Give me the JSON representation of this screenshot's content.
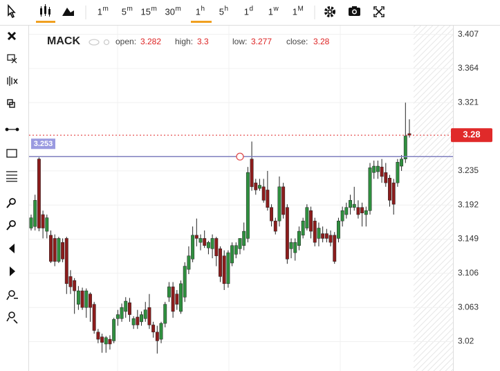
{
  "toolbar": {
    "intervals": [
      {
        "value": "1",
        "unit": "m"
      },
      {
        "value": "5",
        "unit": "m"
      },
      {
        "value": "15",
        "unit": "m"
      },
      {
        "value": "30",
        "unit": "m"
      },
      {
        "value": "1",
        "unit": "h",
        "active": true
      },
      {
        "value": "5",
        "unit": "h"
      },
      {
        "value": "1",
        "unit": "d"
      },
      {
        "value": "1",
        "unit": "w"
      },
      {
        "value": "1",
        "unit": "M"
      }
    ]
  },
  "legend": {
    "symbol": "MACK",
    "open_label": "open:",
    "high_label": "high:",
    "low_label": "low:",
    "close_label": "close:"
  },
  "chart_data": {
    "type": "candlestick",
    "up_color": "#2f8f3f",
    "down_color": "#8c1c1c",
    "open": [
      3.163,
      3.165,
      3.25,
      3.18,
      3.159,
      3.154,
      3.15,
      3.121,
      3.145,
      3.15,
      3.102,
      3.097,
      3.067,
      3.084,
      3.063,
      3.08,
      3.067,
      3.032,
      3.026,
      3.017,
      3.023,
      3.021,
      3.049,
      3.049,
      3.058,
      3.069,
      3.041,
      3.051,
      3.045,
      3.049,
      3.063,
      3.041,
      3.032,
      3.023,
      3.043,
      3.076,
      3.089,
      3.08,
      3.058,
      3.076,
      3.111,
      3.124,
      3.154,
      3.145,
      3.15,
      3.138,
      3.137,
      3.15,
      3.137,
      3.128,
      3.093,
      3.119,
      3.13,
      3.137,
      3.141,
      3.15,
      3.25,
      3.22,
      3.213,
      3.215,
      3.211,
      3.189,
      3.172,
      3.172,
      3.215,
      3.189,
      3.137,
      3.132,
      3.141,
      3.154,
      3.163,
      3.185,
      3.172,
      3.15,
      3.156,
      3.156,
      3.154,
      3.154,
      3.15,
      3.172,
      3.18,
      3.189,
      3.189,
      3.189,
      3.189,
      3.18,
      3.185,
      3.233,
      3.234,
      3.24,
      3.233,
      3.226,
      3.22,
      3.22,
      3.241,
      3.25,
      3.282
    ],
    "high": [
      3.18,
      3.205,
      3.252,
      3.185,
      3.18,
      3.16,
      3.155,
      3.152,
      3.15,
      3.152,
      3.11,
      3.1,
      3.09,
      3.088,
      3.087,
      3.082,
      3.07,
      3.036,
      3.03,
      3.027,
      3.028,
      3.05,
      3.06,
      3.068,
      3.076,
      3.075,
      3.052,
      3.06,
      3.058,
      3.07,
      3.08,
      3.045,
      3.04,
      3.045,
      3.07,
      3.095,
      3.095,
      3.085,
      3.097,
      3.12,
      3.14,
      3.165,
      3.175,
      3.155,
      3.16,
      3.147,
      3.155,
      3.152,
      3.14,
      3.135,
      3.135,
      3.145,
      3.145,
      3.15,
      3.17,
      3.24,
      3.272,
      3.225,
      3.225,
      3.225,
      3.235,
      3.193,
      3.176,
      3.228,
      3.22,
      3.193,
      3.15,
      3.15,
      3.165,
      3.176,
      3.193,
      3.19,
      3.176,
      3.17,
      3.165,
      3.162,
      3.16,
      3.158,
      3.176,
      3.19,
      3.195,
      3.205,
      3.215,
      3.198,
      3.195,
      3.19,
      3.245,
      3.248,
      3.248,
      3.25,
      3.245,
      3.23,
      3.225,
      3.25,
      3.255,
      3.321,
      3.3
    ],
    "low": [
      3.16,
      3.16,
      3.159,
      3.15,
      3.15,
      3.119,
      3.115,
      3.119,
      3.12,
      3.08,
      3.08,
      3.055,
      3.06,
      3.06,
      3.05,
      3.045,
      3.03,
      3.018,
      3.006,
      3.006,
      3.01,
      3.018,
      3.04,
      3.045,
      3.05,
      3.045,
      3.036,
      3.036,
      3.04,
      3.045,
      3.036,
      3.025,
      3.005,
      3.018,
      3.038,
      3.07,
      3.05,
      3.06,
      3.055,
      3.07,
      3.105,
      3.12,
      3.14,
      3.135,
      3.138,
      3.13,
      3.125,
      3.115,
      3.095,
      3.085,
      3.088,
      3.115,
      3.125,
      3.13,
      3.135,
      3.145,
      3.21,
      3.205,
      3.21,
      3.195,
      3.185,
      3.165,
      3.155,
      3.165,
      3.175,
      3.118,
      3.125,
      3.122,
      3.135,
      3.15,
      3.16,
      3.15,
      3.14,
      3.14,
      3.145,
      3.145,
      3.14,
      3.118,
      3.145,
      3.165,
      3.175,
      3.18,
      3.185,
      3.175,
      3.165,
      3.165,
      3.18,
      3.225,
      3.225,
      3.22,
      3.215,
      3.19,
      3.18,
      3.215,
      3.235,
      3.245,
      3.277
    ],
    "close": [
      3.176,
      3.198,
      3.163,
      3.163,
      3.176,
      3.121,
      3.121,
      3.15,
      3.124,
      3.093,
      3.089,
      3.084,
      3.084,
      3.063,
      3.084,
      3.063,
      3.034,
      3.023,
      3.019,
      3.025,
      3.017,
      3.048,
      3.054,
      3.063,
      3.071,
      3.054,
      3.049,
      3.041,
      3.054,
      3.06,
      3.041,
      3.032,
      3.021,
      3.043,
      3.067,
      3.089,
      3.058,
      3.067,
      3.093,
      3.115,
      3.128,
      3.154,
      3.15,
      3.15,
      3.141,
      3.145,
      3.15,
      3.128,
      3.102,
      3.093,
      3.132,
      3.141,
      3.141,
      3.15,
      3.159,
      3.233,
      3.215,
      3.211,
      3.217,
      3.198,
      3.189,
      3.172,
      3.159,
      3.215,
      3.18,
      3.124,
      3.145,
      3.145,
      3.159,
      3.172,
      3.189,
      3.159,
      3.145,
      3.163,
      3.15,
      3.15,
      3.145,
      3.121,
      3.172,
      3.185,
      3.189,
      3.198,
      3.193,
      3.18,
      3.182,
      3.185,
      3.239,
      3.241,
      3.241,
      3.228,
      3.22,
      3.198,
      3.193,
      3.246,
      3.25,
      3.279,
      3.28
    ],
    "ylim": [
      2.983,
      3.418
    ],
    "yticks": [
      3.407,
      3.364,
      3.321,
      3.235,
      3.192,
      3.149,
      3.106,
      3.063,
      3.02
    ],
    "grid": true,
    "horizontal_line": {
      "value": 3.253,
      "color": "#7f7fbf"
    },
    "last_price_color": "#e02a2a"
  }
}
